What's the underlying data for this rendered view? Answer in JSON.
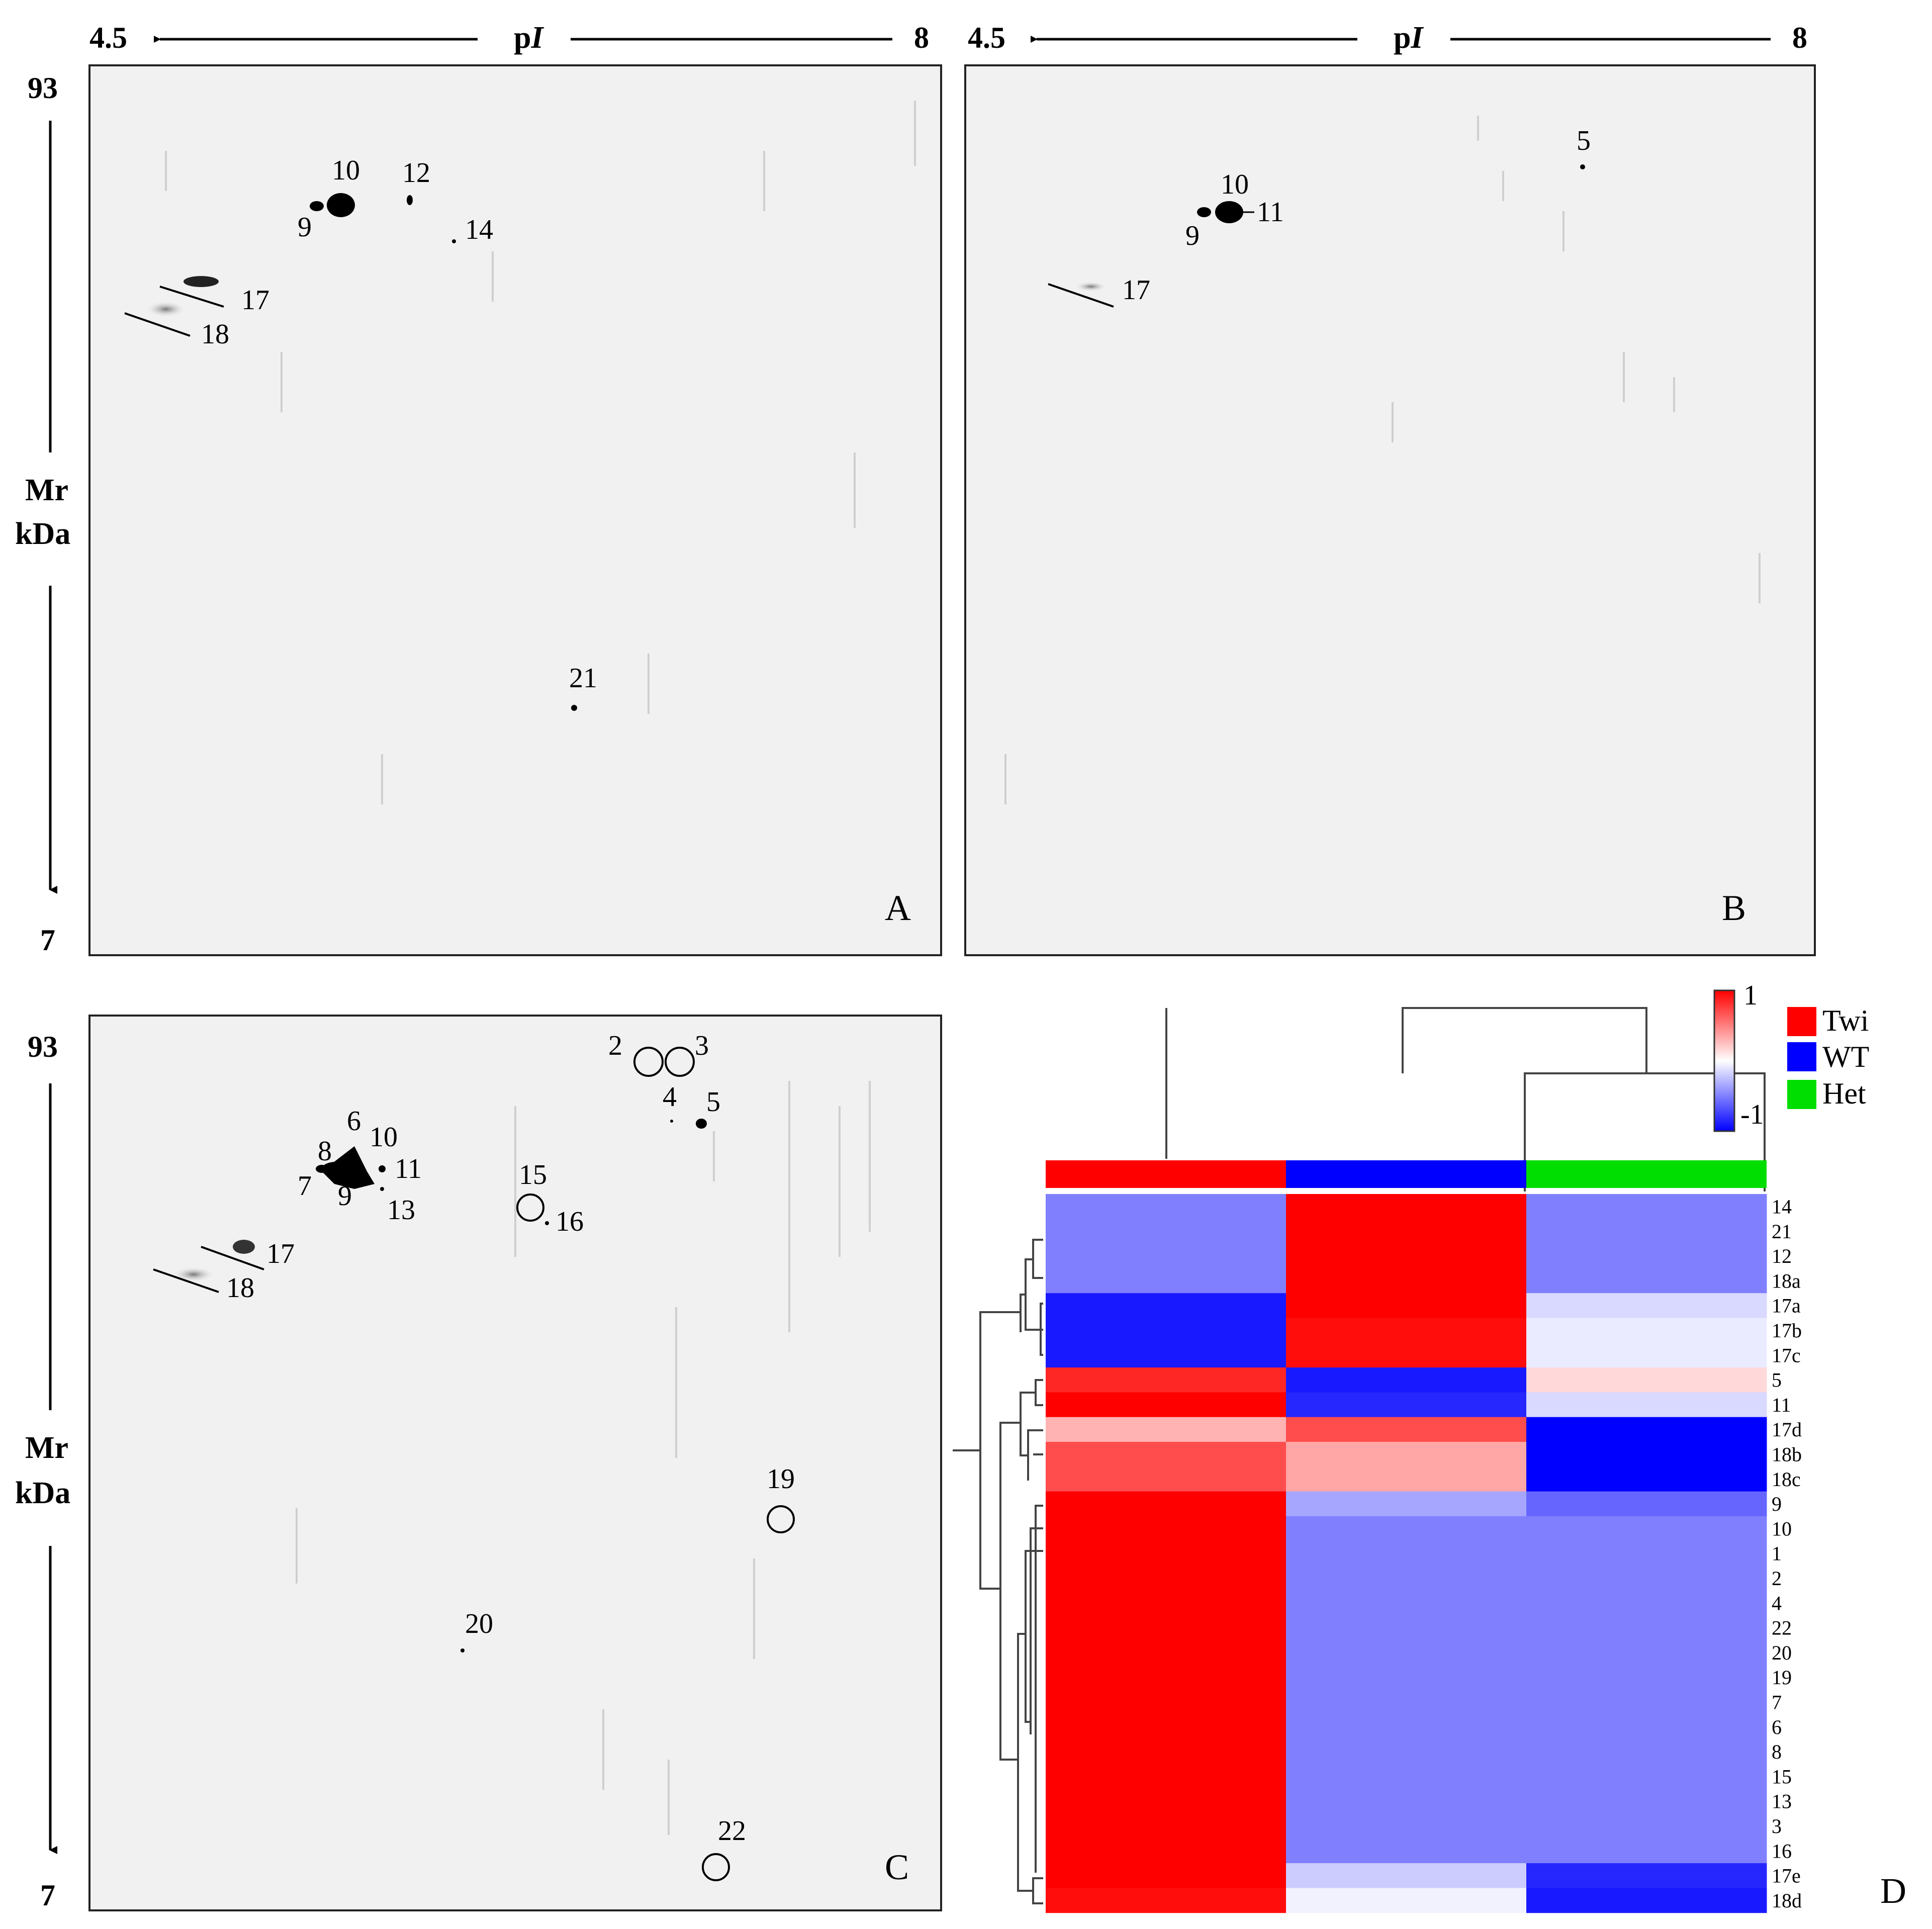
{
  "axes": {
    "pi_left": "4.5",
    "pi_right": "8",
    "pi_label": "p",
    "pi_label_italic": "I",
    "mr_top": "93",
    "mr_bottom": "7",
    "mr_label_1": "Mr",
    "mr_label_2": "kDa"
  },
  "panels": {
    "A": {
      "letter": "A",
      "spots": [
        "10",
        "12",
        "9",
        "14",
        "17",
        "18",
        "21"
      ]
    },
    "B": {
      "letter": "B",
      "spots": [
        "5",
        "10",
        "11",
        "9",
        "17"
      ]
    },
    "C": {
      "letter": "C",
      "spots": [
        "2",
        "3",
        "4",
        "5",
        "6",
        "10",
        "8",
        "11",
        "7",
        "9",
        "13",
        "15",
        "16",
        "17",
        "18",
        "19",
        "20",
        "22"
      ]
    },
    "D": {
      "letter": "D"
    }
  },
  "heatmap": {
    "colorbar_max": "1",
    "colorbar_min": "-1",
    "groups": [
      {
        "name": "Twi",
        "color": "#ff0000"
      },
      {
        "name": "WT",
        "color": "#0000ff"
      },
      {
        "name": "Het",
        "color": "#00dd00"
      }
    ],
    "rows": [
      "14",
      "21",
      "12",
      "18a",
      "17a",
      "17b",
      "17c",
      "5",
      "11",
      "17d",
      "18b",
      "18c",
      "9",
      "10",
      "1",
      "2",
      "4",
      "22",
      "20",
      "19",
      "7",
      "6",
      "8",
      "15",
      "13",
      "3",
      "16",
      "17e",
      "18d"
    ],
    "values": [
      [
        -0.5,
        1,
        -0.5
      ],
      [
        -0.5,
        1,
        -0.5
      ],
      [
        -0.5,
        1,
        -0.5
      ],
      [
        -0.5,
        1,
        -0.5
      ],
      [
        -0.9,
        1,
        -0.15
      ],
      [
        -0.9,
        0.95,
        -0.08
      ],
      [
        -0.9,
        0.95,
        -0.08
      ],
      [
        0.85,
        -0.9,
        0.15
      ],
      [
        1,
        -0.85,
        -0.15
      ],
      [
        0.3,
        0.7,
        -1
      ],
      [
        0.7,
        0.35,
        -1
      ],
      [
        0.7,
        0.35,
        -1
      ],
      [
        1,
        -0.35,
        -0.6
      ],
      [
        1,
        -0.5,
        -0.5
      ],
      [
        1,
        -0.5,
        -0.5
      ],
      [
        1,
        -0.5,
        -0.5
      ],
      [
        1,
        -0.5,
        -0.5
      ],
      [
        1,
        -0.5,
        -0.5
      ],
      [
        1,
        -0.5,
        -0.5
      ],
      [
        1,
        -0.5,
        -0.5
      ],
      [
        1,
        -0.5,
        -0.5
      ],
      [
        1,
        -0.5,
        -0.5
      ],
      [
        1,
        -0.5,
        -0.5
      ],
      [
        1,
        -0.5,
        -0.5
      ],
      [
        1,
        -0.5,
        -0.5
      ],
      [
        1,
        -0.5,
        -0.5
      ],
      [
        1,
        -0.5,
        -0.5
      ],
      [
        1,
        -0.2,
        -0.85
      ],
      [
        0.95,
        -0.05,
        -0.9
      ]
    ]
  }
}
